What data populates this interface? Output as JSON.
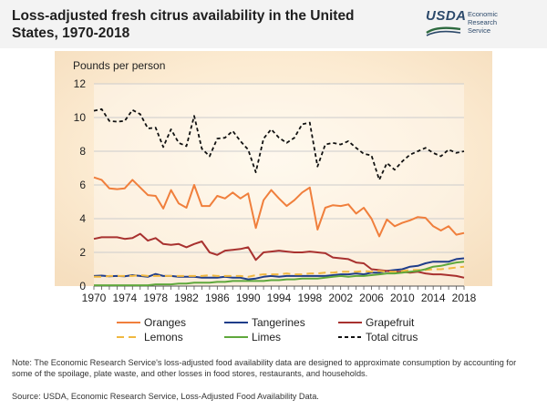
{
  "header": {
    "title": "Loss-adjusted fresh citrus availability in the United States, 1970-2018",
    "logo_text": "USDA",
    "agency_line1": "Economic",
    "agency_line2": "Research",
    "agency_line3": "Service"
  },
  "chart_data": {
    "type": "line",
    "title": "Loss-adjusted fresh citrus availability in the United States, 1970-2018",
    "ylabel": "Pounds per person",
    "xlabel": "",
    "xlim": [
      1970,
      2018
    ],
    "ylim": [
      0,
      12
    ],
    "yticks": [
      0,
      2,
      4,
      6,
      8,
      10,
      12
    ],
    "xticks": [
      1970,
      1974,
      1978,
      1982,
      1986,
      1990,
      1994,
      1998,
      2002,
      2006,
      2010,
      2014,
      2018
    ],
    "grid": "horizontal",
    "legend_position": "bottom",
    "x": [
      1970,
      1971,
      1972,
      1973,
      1974,
      1975,
      1976,
      1977,
      1978,
      1979,
      1980,
      1981,
      1982,
      1983,
      1984,
      1985,
      1986,
      1987,
      1988,
      1989,
      1990,
      1991,
      1992,
      1993,
      1994,
      1995,
      1996,
      1997,
      1998,
      1999,
      2000,
      2001,
      2002,
      2003,
      2004,
      2005,
      2006,
      2007,
      2008,
      2009,
      2010,
      2011,
      2012,
      2013,
      2014,
      2015,
      2016,
      2017,
      2018
    ],
    "series": [
      {
        "name": "Oranges",
        "color": "#f07f3c",
        "dash": "solid",
        "values": [
          6.45,
          6.3,
          5.8,
          5.75,
          5.8,
          6.3,
          5.85,
          5.4,
          5.35,
          4.6,
          5.7,
          4.9,
          4.65,
          6.0,
          4.75,
          4.75,
          5.35,
          5.2,
          5.55,
          5.2,
          5.5,
          3.45,
          5.1,
          5.7,
          5.2,
          4.75,
          5.1,
          5.55,
          5.85,
          3.35,
          4.65,
          4.8,
          4.75,
          4.85,
          4.3,
          4.65,
          4.0,
          2.95,
          3.95,
          3.55,
          3.75,
          3.9,
          4.1,
          4.05,
          3.55,
          3.3,
          3.55,
          3.05,
          3.15
        ]
      },
      {
        "name": "Tangerines",
        "color": "#1f3d8a",
        "dash": "solid",
        "values": [
          0.6,
          0.62,
          0.58,
          0.6,
          0.58,
          0.65,
          0.6,
          0.55,
          0.72,
          0.6,
          0.6,
          0.55,
          0.55,
          0.55,
          0.5,
          0.5,
          0.5,
          0.55,
          0.5,
          0.5,
          0.4,
          0.45,
          0.55,
          0.6,
          0.55,
          0.6,
          0.6,
          0.6,
          0.6,
          0.6,
          0.6,
          0.65,
          0.7,
          0.7,
          0.75,
          0.7,
          0.8,
          0.8,
          0.9,
          0.95,
          1.0,
          1.15,
          1.2,
          1.35,
          1.45,
          1.45,
          1.45,
          1.6,
          1.65
        ]
      },
      {
        "name": "Grapefruit",
        "color": "#a8312f",
        "dash": "solid",
        "values": [
          2.8,
          2.9,
          2.9,
          2.9,
          2.8,
          2.85,
          3.1,
          2.7,
          2.85,
          2.5,
          2.45,
          2.5,
          2.3,
          2.5,
          2.65,
          2.0,
          1.85,
          2.1,
          2.15,
          2.2,
          2.3,
          1.55,
          2.0,
          2.05,
          2.1,
          2.05,
          2.0,
          2.0,
          2.05,
          2.0,
          1.95,
          1.7,
          1.65,
          1.6,
          1.4,
          1.35,
          1.0,
          0.95,
          0.9,
          0.85,
          0.85,
          0.8,
          0.85,
          0.75,
          0.7,
          0.7,
          0.65,
          0.6,
          0.5
        ]
      },
      {
        "name": "Lemons",
        "color": "#f0b840",
        "dash": "dashed",
        "values": [
          0.55,
          0.55,
          0.6,
          0.6,
          0.6,
          0.6,
          0.65,
          0.6,
          0.6,
          0.6,
          0.6,
          0.6,
          0.6,
          0.6,
          0.6,
          0.65,
          0.6,
          0.6,
          0.6,
          0.6,
          0.55,
          0.65,
          0.7,
          0.7,
          0.7,
          0.75,
          0.7,
          0.7,
          0.75,
          0.75,
          0.8,
          0.8,
          0.85,
          0.85,
          0.85,
          0.9,
          0.85,
          0.9,
          0.85,
          0.85,
          0.9,
          0.95,
          0.95,
          0.95,
          1.0,
          1.0,
          1.05,
          1.1,
          1.15
        ]
      },
      {
        "name": "Limes",
        "color": "#5fa83c",
        "dash": "solid",
        "values": [
          0.05,
          0.05,
          0.05,
          0.05,
          0.05,
          0.05,
          0.05,
          0.05,
          0.1,
          0.1,
          0.1,
          0.15,
          0.15,
          0.2,
          0.2,
          0.2,
          0.25,
          0.25,
          0.3,
          0.3,
          0.3,
          0.3,
          0.3,
          0.35,
          0.35,
          0.4,
          0.4,
          0.45,
          0.45,
          0.45,
          0.5,
          0.55,
          0.6,
          0.55,
          0.6,
          0.6,
          0.65,
          0.7,
          0.75,
          0.75,
          0.8,
          0.85,
          0.9,
          1.0,
          1.15,
          1.2,
          1.3,
          1.4,
          1.45
        ]
      },
      {
        "name": "Total citrus",
        "color": "#111111",
        "dash": "dotted",
        "values": [
          10.4,
          10.5,
          9.8,
          9.75,
          9.8,
          10.45,
          10.2,
          9.35,
          9.4,
          8.25,
          9.3,
          8.5,
          8.3,
          10.1,
          8.15,
          7.7,
          8.75,
          8.8,
          9.2,
          8.6,
          8.1,
          6.75,
          8.75,
          9.3,
          8.8,
          8.5,
          8.8,
          9.6,
          9.7,
          7.1,
          8.4,
          8.5,
          8.4,
          8.6,
          8.2,
          7.85,
          7.75,
          6.3,
          7.3,
          6.9,
          7.4,
          7.8,
          8.0,
          8.2,
          7.9,
          7.7,
          8.1,
          7.9,
          8.0
        ]
      }
    ]
  },
  "legend": {
    "items": [
      {
        "label": "Oranges"
      },
      {
        "label": "Tangerines"
      },
      {
        "label": "Grapefruit"
      },
      {
        "label": "Lemons"
      },
      {
        "label": "Limes"
      },
      {
        "label": "Total citrus"
      }
    ]
  },
  "footer": {
    "note": "Note: The Economic Research Service's loss-adjusted food availability data are designed to approximate consumption by accounting for some of the spoilage, plate waste, and other losses in food stores, restaurants, and households.",
    "source": "Source: USDA, Economic Research Service, Loss-Adjusted Food Availability Data."
  },
  "colors": {
    "header_bg": "#f3f3f3",
    "plot_bg_tint": "#fbe7c9",
    "axis": "#555555",
    "grid": "#cccccc"
  }
}
